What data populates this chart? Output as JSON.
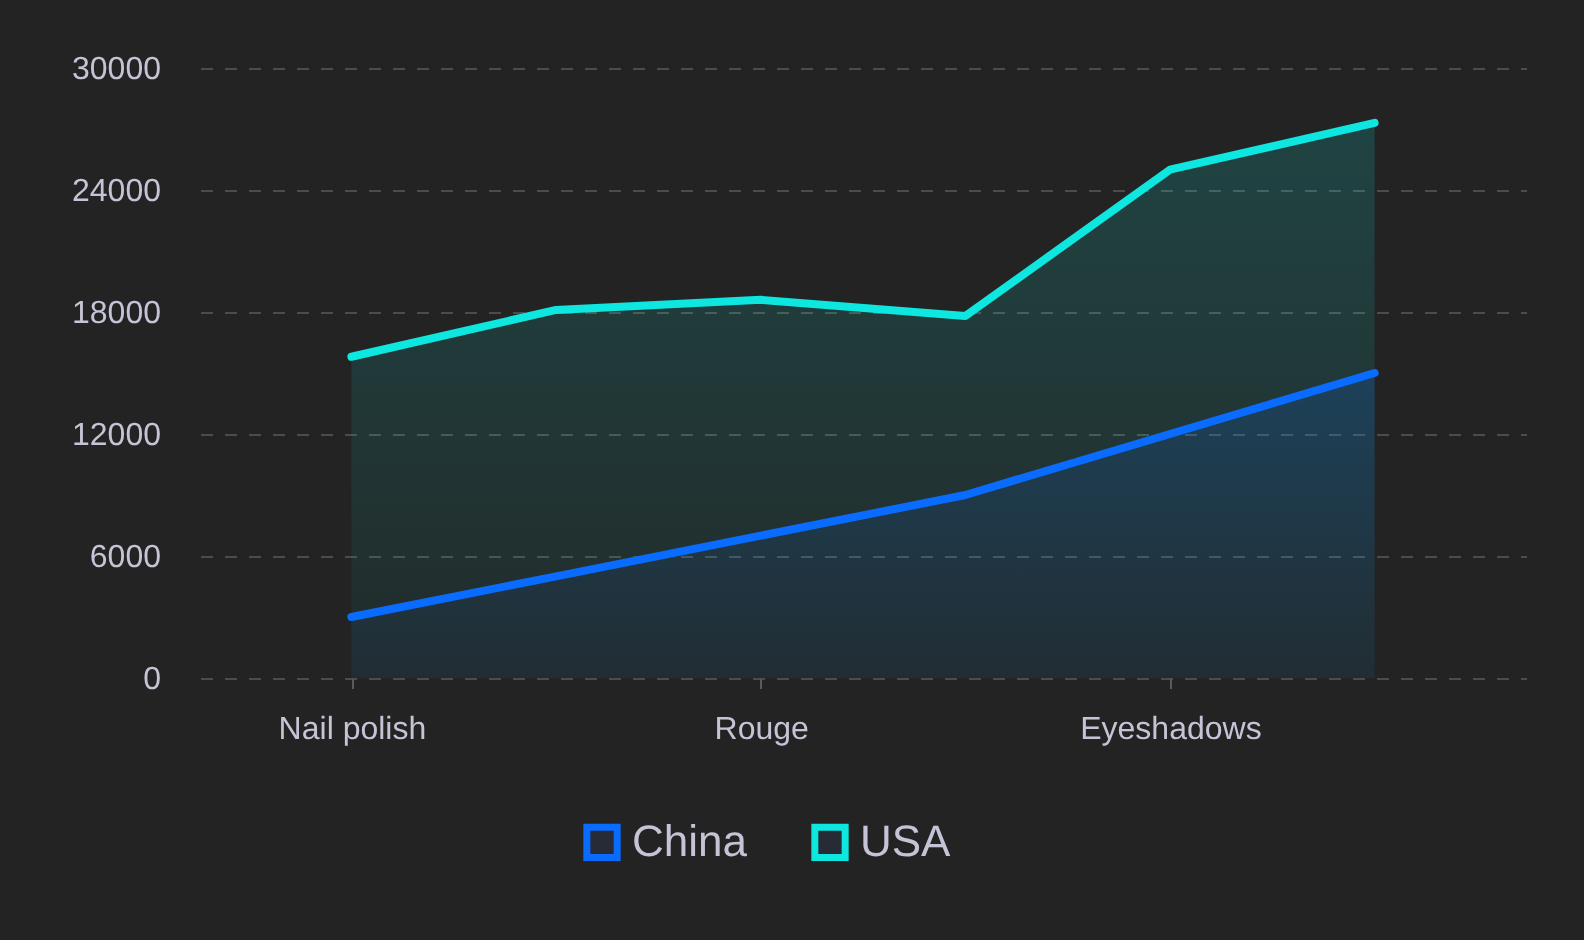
{
  "chart_data": {
    "type": "area",
    "categories": [
      "Nail polish",
      null,
      "Rouge",
      null,
      "Eyeshadows",
      null
    ],
    "series": [
      {
        "name": "China",
        "color": "#0a6cff",
        "values": [
          3000,
          5000,
          7000,
          9000,
          12000,
          15000
        ]
      },
      {
        "name": "USA",
        "color": "#0ee6e0",
        "values": [
          15800,
          18100,
          18600,
          17800,
          25000,
          27300
        ]
      }
    ],
    "ylim": [
      0,
      30000
    ],
    "yticks": [
      0,
      6000,
      12000,
      18000,
      24000,
      30000
    ],
    "grid": "y",
    "legend": "bottom",
    "line_style": "solid"
  }
}
